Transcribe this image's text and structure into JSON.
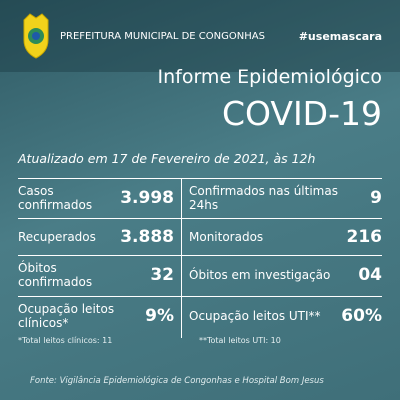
{
  "header": {
    "org": "PREFEITURA MUNICIPAL DE CONGONHAS",
    "hashtag": "#usemascara"
  },
  "title": "Informe Epidemiológico",
  "subtitle": "COVID-19",
  "updated": "Atualizado em 17 de Fevereiro de 2021, às 12h",
  "stats": [
    {
      "label": "Casos confirmados",
      "value": "3.998"
    },
    {
      "label": "Confirmados nas últimas 24hs",
      "value": "9"
    },
    {
      "label": "Recuperados",
      "value": "3.888"
    },
    {
      "label": "Monitorados",
      "value": "216"
    },
    {
      "label": "Óbitos confirmados",
      "value": "32"
    },
    {
      "label": "Óbitos em investigação",
      "value": "04"
    },
    {
      "label": "Ocupação leitos clínicos*",
      "value": "9%",
      "note": "*Total leitos clínicos: 11"
    },
    {
      "label": "Ocupação leitos UTI**",
      "value": "60%",
      "note": "**Total leitos UTI: 10"
    }
  ],
  "footer": "Fonte: Vigilância Epidemiológica de Congonhas e Hospital Bom Jesus"
}
